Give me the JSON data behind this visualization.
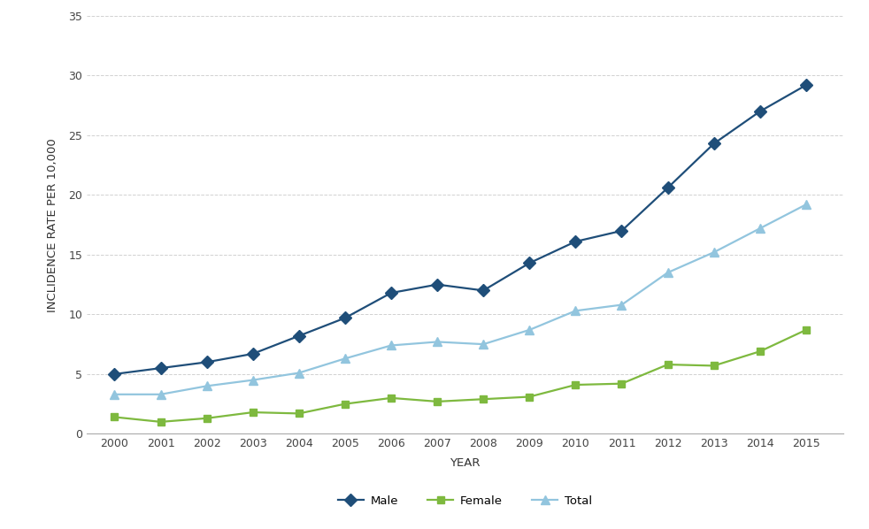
{
  "years": [
    2000,
    2001,
    2002,
    2003,
    2004,
    2005,
    2006,
    2007,
    2008,
    2009,
    2010,
    2011,
    2012,
    2013,
    2014,
    2015
  ],
  "male": [
    5.0,
    5.5,
    6.0,
    6.7,
    8.2,
    9.7,
    11.8,
    12.5,
    12.0,
    14.3,
    16.1,
    17.0,
    20.6,
    24.3,
    27.0,
    29.2
  ],
  "female": [
    1.4,
    1.0,
    1.3,
    1.8,
    1.7,
    2.5,
    3.0,
    2.7,
    2.9,
    3.1,
    4.1,
    4.2,
    5.8,
    5.7,
    6.9,
    8.7
  ],
  "total": [
    3.3,
    3.3,
    4.0,
    4.5,
    5.1,
    6.3,
    7.4,
    7.7,
    7.5,
    8.7,
    10.3,
    10.8,
    13.5,
    15.2,
    17.2,
    19.2
  ],
  "male_color": "#1f4e79",
  "female_color": "#7eb93f",
  "total_color": "#92c5de",
  "male_label": "Male",
  "female_label": "Female",
  "total_label": "Total",
  "xlabel": "YEAR",
  "ylabel": "INCLIDENCE RATE PER 10,000",
  "ylim": [
    0,
    35
  ],
  "yticks": [
    0,
    5,
    10,
    15,
    20,
    25,
    30,
    35
  ],
  "background_color": "#ffffff",
  "grid_color": "#cccccc",
  "axis_fontsize": 9.5,
  "tick_fontsize": 9,
  "legend_fontsize": 9.5,
  "line_width": 1.6,
  "marker_size": 7
}
